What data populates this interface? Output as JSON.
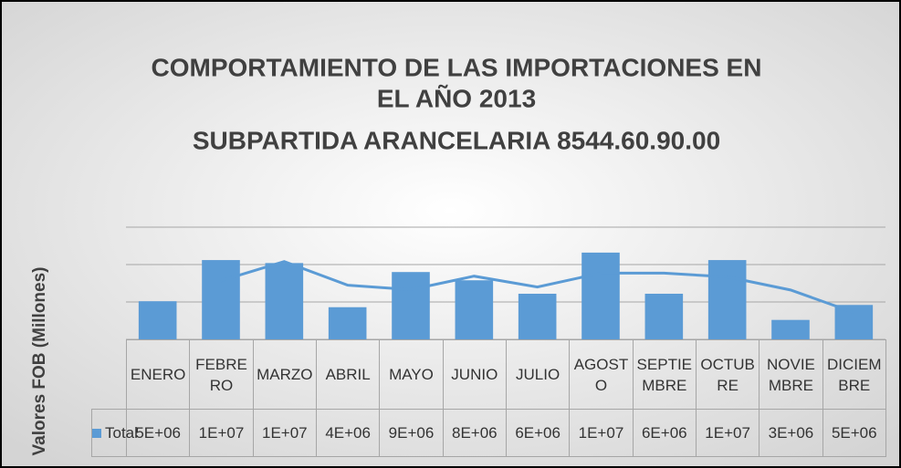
{
  "chart_data": {
    "type": "bar",
    "title": [
      "COMPORTAMIENTO DE LAS IMPORTACIONES EN",
      "EL AÑO 2013",
      "SUBPARTIDA ARANCELARIA 8544.60.90.00"
    ],
    "y_label": "Valores FOB (Millones)",
    "categories": [
      "ENERO",
      "FEBRERO",
      "MARZO",
      "ABRIL",
      "MAYO",
      "JUNIO",
      "JULIO",
      "AGOSTO",
      "SEPTIEMBRE",
      "OCTUBRE",
      "NOVIEMBRE",
      "DICIEMBRE"
    ],
    "series": [
      {
        "name": "Total",
        "color": "#5b9bd5",
        "values": [
          5100000,
          10600000,
          10200000,
          4300000,
          9000000,
          7900000,
          6100000,
          11600000,
          6100000,
          10600000,
          2600000,
          4600000
        ],
        "value_labels": [
          "5E+06",
          "1E+07",
          "1E+07",
          "4E+06",
          "9E+06",
          "8E+06",
          "6E+06",
          "1E+07",
          "6E+06",
          "1E+07",
          "3E+06",
          "5E+06"
        ]
      }
    ],
    "trendline": {
      "type": "moving_average",
      "period": 2
    },
    "ylim": [
      0,
      15000000
    ],
    "yticks": [
      0,
      5000000,
      10000000,
      15000000
    ],
    "grid": true
  }
}
